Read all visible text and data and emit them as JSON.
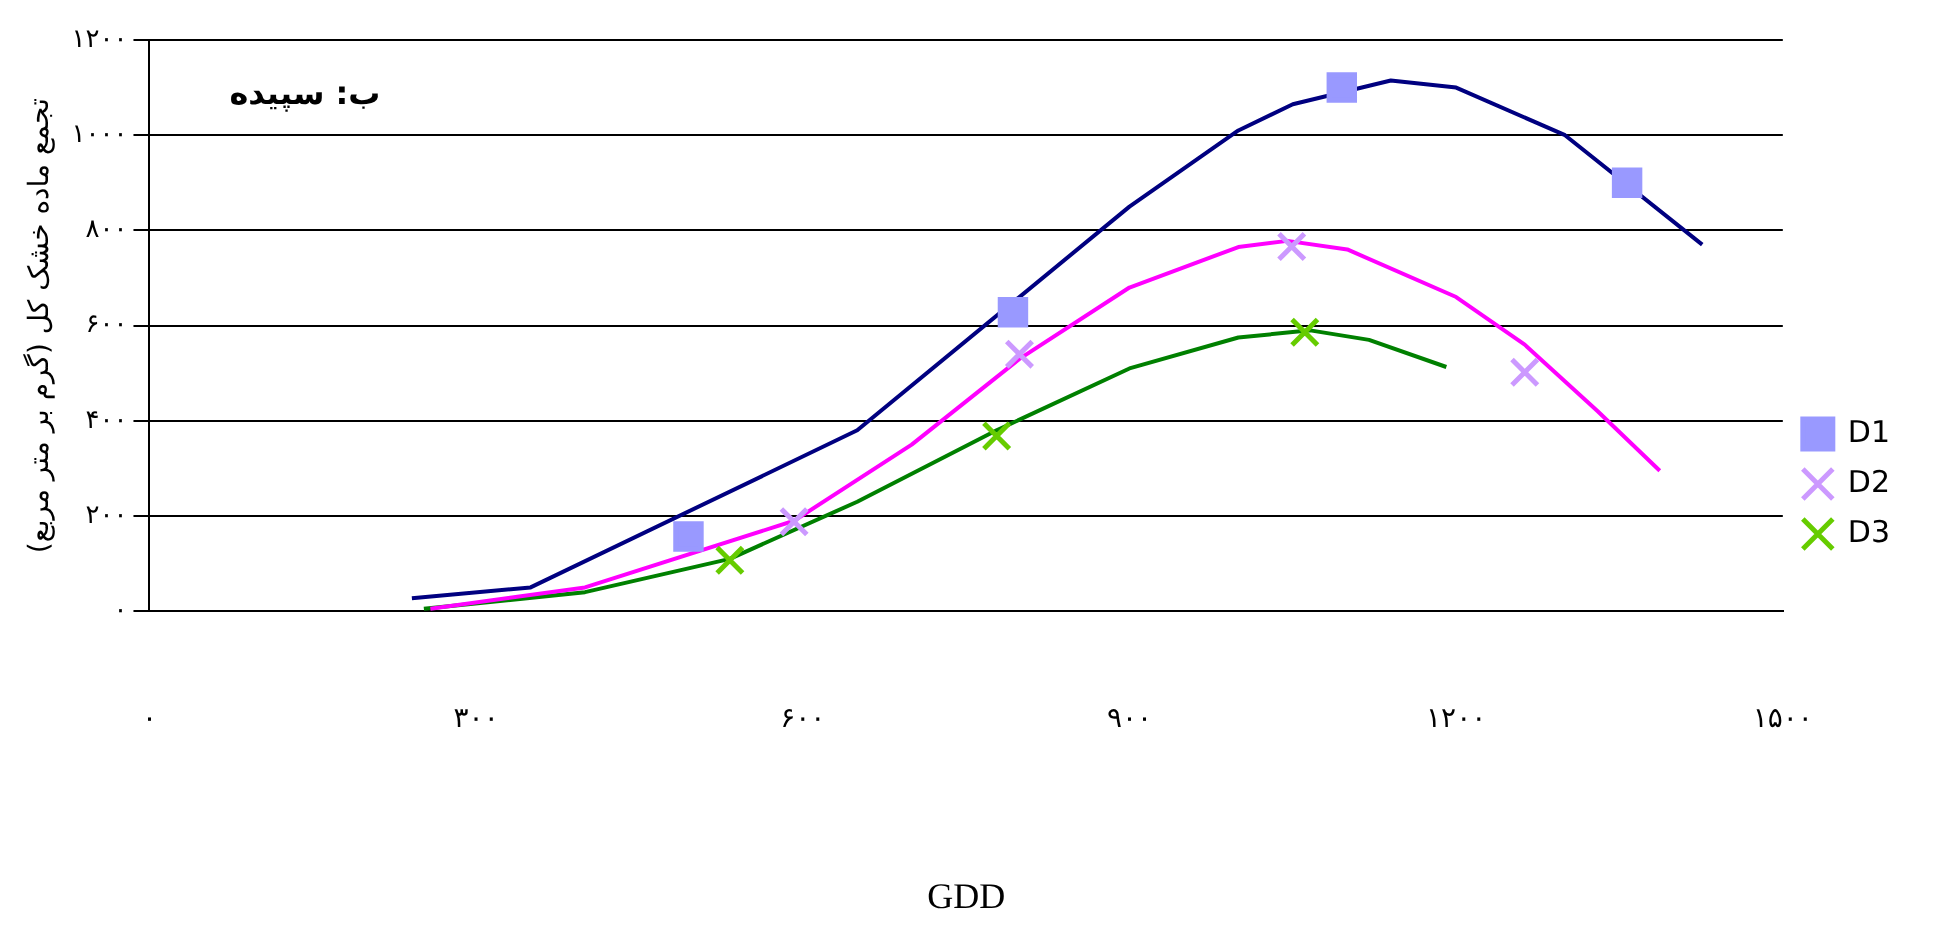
{
  "chart_data": {
    "type": "scatter",
    "xlabel": "GDD",
    "ylabel": "تجمع ماده خشک کل (گرم بر متر مربع)",
    "annotations": [
      "ب: سپیده"
    ],
    "xlim": [
      0,
      1500
    ],
    "xticks": [
      {
        "value": 0,
        "label": "۰"
      },
      {
        "value": 300,
        "label": "۳۰۰"
      },
      {
        "value": 600,
        "label": "۶۰۰"
      },
      {
        "value": 900,
        "label": "۹۰۰"
      },
      {
        "value": 1200,
        "label": "۱۲۰۰"
      },
      {
        "value": 1500,
        "label": "۱۵۰۰"
      }
    ],
    "ylim": [
      0,
      1200
    ],
    "yticks": [
      {
        "value": 0,
        "label": "۰"
      },
      {
        "value": 200,
        "label": "۲۰۰"
      },
      {
        "value": 400,
        "label": "۴۰۰"
      },
      {
        "value": 600,
        "label": "۶۰۰"
      },
      {
        "value": 800,
        "label": "۸۰۰"
      },
      {
        "value": 1000,
        "label": "۱۰۰۰"
      },
      {
        "value": 1200,
        "label": "۱۲۰۰"
      }
    ],
    "grid": "y",
    "legend": "right",
    "series": [
      {
        "name": "D1",
        "marker": "square",
        "color": "#9999ff",
        "x": [
          495,
          793,
          1095,
          1357
        ],
        "values": [
          157,
          628,
          1100,
          900
        ]
      },
      {
        "name": "D2",
        "marker": "cross",
        "color": "#cc99ff",
        "x": [
          592,
          799,
          1049,
          1263
        ],
        "values": [
          188,
          540,
          766,
          502
        ]
      },
      {
        "name": "D3",
        "marker": "cross",
        "color": "#66cc00",
        "x": [
          533,
          778,
          1061
        ],
        "values": [
          107,
          368,
          586
        ]
      },
      {
        "type": "line",
        "marker": "none",
        "color": "#000080",
        "x": [
          241,
          350,
          650,
          900,
          1000,
          1050,
          1140,
          1200,
          1300,
          1426
        ],
        "values": [
          27,
          50,
          380,
          850,
          1010,
          1065,
          1115,
          1100,
          1000,
          770
        ]
      },
      {
        "type": "line",
        "marker": "none",
        "color": "#ff00ff",
        "x": [
          258,
          400,
          592,
          700,
          799,
          900,
          1000,
          1045,
          1100,
          1200,
          1263,
          1330,
          1387
        ],
        "values": [
          5,
          50,
          190,
          350,
          530,
          680,
          765,
          778,
          760,
          660,
          560,
          420,
          295
        ]
      },
      {
        "type": "line",
        "marker": "none",
        "color": "#008000",
        "x": [
          252,
          400,
          533,
          650,
          778,
          900,
          1000,
          1066,
          1120,
          1191
        ],
        "values": [
          5,
          40,
          110,
          230,
          380,
          510,
          575,
          590,
          570,
          513
        ]
      }
    ]
  }
}
